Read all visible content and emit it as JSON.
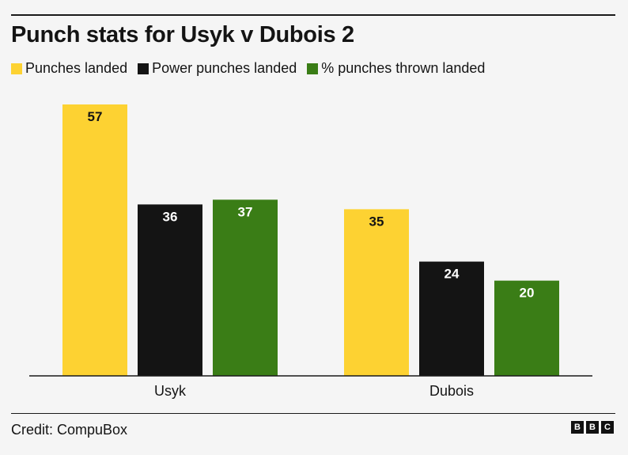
{
  "title": "Punch stats for Usyk v Dubois 2",
  "credit": "Credit: CompuBox",
  "logo_text": [
    "B",
    "B",
    "C"
  ],
  "colors": {
    "background": "#f5f5f5",
    "axis": "#1a1a1a",
    "label_dark": "#141414",
    "label_light": "#ffffff"
  },
  "chart_data": {
    "type": "bar",
    "title": "Punch stats for Usyk v Dubois 2",
    "categories": [
      "Usyk",
      "Dubois"
    ],
    "series": [
      {
        "name": "Punches landed",
        "values": [
          57,
          35
        ],
        "color": "#fdd232",
        "label_color": "#141414"
      },
      {
        "name": "Power punches landed",
        "values": [
          36,
          24
        ],
        "color": "#141414",
        "label_color": "#ffffff"
      },
      {
        "name": "% punches thrown landed",
        "values": [
          37,
          20
        ],
        "color": "#3a7d16",
        "label_color": "#ffffff"
      }
    ],
    "ylim": [
      0,
      57
    ],
    "grid": false,
    "legend": "top-left",
    "data_labels": true
  }
}
